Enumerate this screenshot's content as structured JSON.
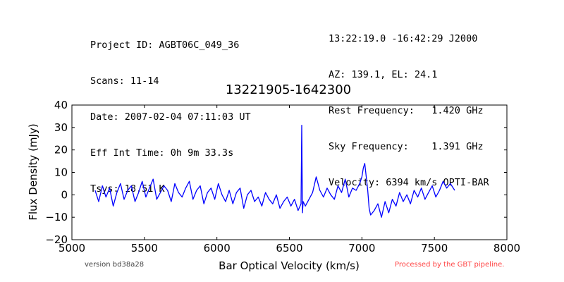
{
  "header": {
    "left_lines": [
      "Project ID: AGBT06C_049_36",
      "Scans: 11-14",
      "Date: 2007-02-04 07:11:03 UT",
      "Eff Int Time: 0h 9m 33.3s",
      "Tsys: 18.51 K"
    ],
    "right_lines": [
      "13:22:19.0 -16:42:29 J2000",
      "AZ: 139.1, EL: 24.1",
      "Rest Frequency:   1.420 GHz",
      "Sky Frequency:    1.391 GHz",
      "Velocity: 6394 km/s OPTI-BAR"
    ]
  },
  "footer": {
    "version": "version bd38a28",
    "processed": "Processed by the GBT pipeline.",
    "processed_color": "#ff4444"
  },
  "chart_data": {
    "type": "line",
    "title": "13221905-1642300",
    "xlabel": "Bar Optical Velocity (km/s)",
    "ylabel": "Flux Density (mJy)",
    "xlim": [
      5000,
      8000
    ],
    "ylim": [
      -20,
      40
    ],
    "xticks": [
      5000,
      5500,
      6000,
      6500,
      7000,
      7500,
      8000
    ],
    "yticks": [
      -20,
      -10,
      0,
      10,
      20,
      30,
      40
    ],
    "xtick_labels": [
      "5000",
      "5500",
      "6000",
      "6500",
      "7000",
      "7500",
      "8000"
    ],
    "ytick_labels": [
      "−20",
      "−10",
      "0",
      "10",
      "20",
      "30",
      "40"
    ],
    "grid": false,
    "line_color": "#0000ff",
    "series": [
      {
        "x": [
          5160,
          5185,
          5210,
          5235,
          5260,
          5285,
          5310,
          5335,
          5360,
          5385,
          5410,
          5435,
          5460,
          5485,
          5510,
          5535,
          5560,
          5585,
          5610,
          5635,
          5660,
          5685,
          5710,
          5735,
          5760,
          5785,
          5810,
          5835,
          5860,
          5885,
          5910,
          5935,
          5960,
          5985,
          6010,
          6035,
          6060,
          6085,
          6110,
          6135,
          6160,
          6185,
          6210,
          6235,
          6260,
          6285,
          6310,
          6335,
          6360,
          6385,
          6410,
          6435,
          6460,
          6485,
          6510,
          6535,
          6560,
          6580,
          6585,
          6590,
          6595,
          6610,
          6635,
          6660,
          6685,
          6710,
          6735,
          6760,
          6785,
          6810,
          6835,
          6860,
          6885,
          6910,
          6935,
          6960,
          6985,
          7000,
          7010,
          7020,
          7030,
          7040,
          7050,
          7060,
          7085,
          7110,
          7135,
          7160,
          7185,
          7210,
          7235,
          7260,
          7285,
          7310,
          7335,
          7360,
          7385,
          7410,
          7435,
          7460,
          7485,
          7510,
          7535,
          7560,
          7585,
          7610,
          7640
        ],
        "y": [
          2,
          -3,
          4,
          -1,
          3,
          -5,
          1,
          5,
          -2,
          2,
          4,
          -3,
          1,
          6,
          -1,
          3,
          7,
          -2,
          1,
          4,
          2,
          -3,
          5,
          1,
          -1,
          3,
          6,
          -2,
          2,
          4,
          -4,
          1,
          3,
          -2,
          5,
          0,
          -3,
          2,
          -4,
          1,
          3,
          -6,
          0,
          2,
          -3,
          -1,
          -5,
          1,
          -2,
          -4,
          0,
          -6,
          -3,
          -1,
          -5,
          -2,
          -7,
          -4,
          31,
          -8,
          -3,
          -5,
          -2,
          1,
          8,
          2,
          -1,
          3,
          0,
          -2,
          4,
          1,
          7,
          -1,
          3,
          2,
          5,
          8,
          12,
          14,
          8,
          2,
          -6,
          -9,
          -7,
          -4,
          -10,
          -3,
          -8,
          -2,
          -5,
          1,
          -3,
          0,
          -4,
          2,
          -1,
          3,
          -2,
          1,
          4,
          -1,
          2,
          6,
          3,
          5,
          2
        ]
      }
    ]
  }
}
